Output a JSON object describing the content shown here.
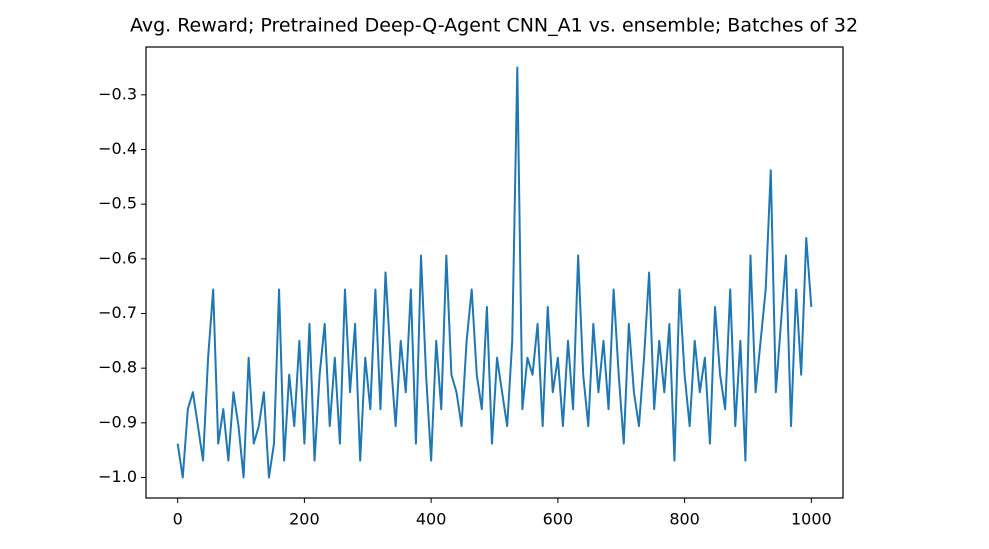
{
  "chart_data": {
    "type": "line",
    "title": "Avg. Reward; Pretrained Deep-Q-Agent CNN_A1 vs. ensemble; Batches of 32",
    "color": "#1f77b4",
    "x": [
      0,
      8,
      16,
      24,
      32,
      40,
      48,
      56,
      64,
      72,
      80,
      88,
      96,
      104,
      112,
      120,
      128,
      136,
      144,
      152,
      160,
      168,
      176,
      184,
      192,
      200,
      208,
      216,
      224,
      232,
      240,
      248,
      256,
      264,
      272,
      280,
      288,
      296,
      304,
      312,
      320,
      328,
      336,
      344,
      352,
      360,
      368,
      376,
      384,
      392,
      400,
      408,
      416,
      424,
      432,
      440,
      448,
      456,
      464,
      472,
      480,
      488,
      496,
      504,
      512,
      520,
      528,
      536,
      544,
      552,
      560,
      568,
      576,
      584,
      592,
      600,
      608,
      616,
      624,
      632,
      640,
      648,
      656,
      664,
      672,
      680,
      688,
      696,
      704,
      712,
      720,
      728,
      736,
      744,
      752,
      760,
      768,
      776,
      784,
      792,
      800,
      808,
      816,
      824,
      832,
      840,
      848,
      856,
      864,
      872,
      880,
      888,
      896,
      904,
      912,
      920,
      928,
      936,
      944,
      952,
      960,
      968,
      976,
      984,
      992,
      1000
    ],
    "values": [
      -0.938,
      -1.0,
      -0.875,
      -0.844,
      -0.906,
      -0.969,
      -0.781,
      -0.656,
      -0.938,
      -0.875,
      -0.969,
      -0.844,
      -0.906,
      -1.0,
      -0.781,
      -0.938,
      -0.906,
      -0.844,
      -1.0,
      -0.938,
      -0.656,
      -0.969,
      -0.812,
      -0.906,
      -0.75,
      -0.938,
      -0.719,
      -0.969,
      -0.812,
      -0.719,
      -0.906,
      -0.781,
      -0.938,
      -0.656,
      -0.844,
      -0.719,
      -0.969,
      -0.781,
      -0.875,
      -0.656,
      -0.875,
      -0.625,
      -0.781,
      -0.906,
      -0.75,
      -0.844,
      -0.656,
      -0.938,
      -0.594,
      -0.812,
      -0.969,
      -0.75,
      -0.875,
      -0.594,
      -0.812,
      -0.844,
      -0.906,
      -0.75,
      -0.656,
      -0.812,
      -0.875,
      -0.688,
      -0.938,
      -0.781,
      -0.844,
      -0.906,
      -0.75,
      -0.25,
      -0.875,
      -0.781,
      -0.812,
      -0.719,
      -0.906,
      -0.688,
      -0.844,
      -0.781,
      -0.906,
      -0.75,
      -0.875,
      -0.594,
      -0.812,
      -0.906,
      -0.719,
      -0.844,
      -0.75,
      -0.875,
      -0.656,
      -0.812,
      -0.938,
      -0.719,
      -0.844,
      -0.906,
      -0.781,
      -0.625,
      -0.875,
      -0.75,
      -0.844,
      -0.719,
      -0.969,
      -0.656,
      -0.812,
      -0.906,
      -0.75,
      -0.844,
      -0.781,
      -0.938,
      -0.688,
      -0.812,
      -0.875,
      -0.656,
      -0.906,
      -0.75,
      -0.969,
      -0.594,
      -0.844,
      -0.75,
      -0.656,
      -0.438,
      -0.844,
      -0.719,
      -0.594,
      -0.906,
      -0.656,
      -0.812,
      -0.562,
      -0.688
    ],
    "xlim": [
      -50,
      1050
    ],
    "ylim": [
      -1.0375,
      -0.2125
    ],
    "xticks": [
      0,
      200,
      400,
      600,
      800,
      1000
    ],
    "yticks": [
      {
        "value": -1.0,
        "label": "−1.0"
      },
      {
        "value": -0.9,
        "label": "−0.9"
      },
      {
        "value": -0.8,
        "label": "−0.8"
      },
      {
        "value": -0.7,
        "label": "−0.7"
      },
      {
        "value": -0.6,
        "label": "−0.6"
      },
      {
        "value": -0.5,
        "label": "−0.5"
      },
      {
        "value": -0.4,
        "label": "−0.4"
      },
      {
        "value": -0.3,
        "label": "−0.3"
      }
    ],
    "grid": false
  }
}
